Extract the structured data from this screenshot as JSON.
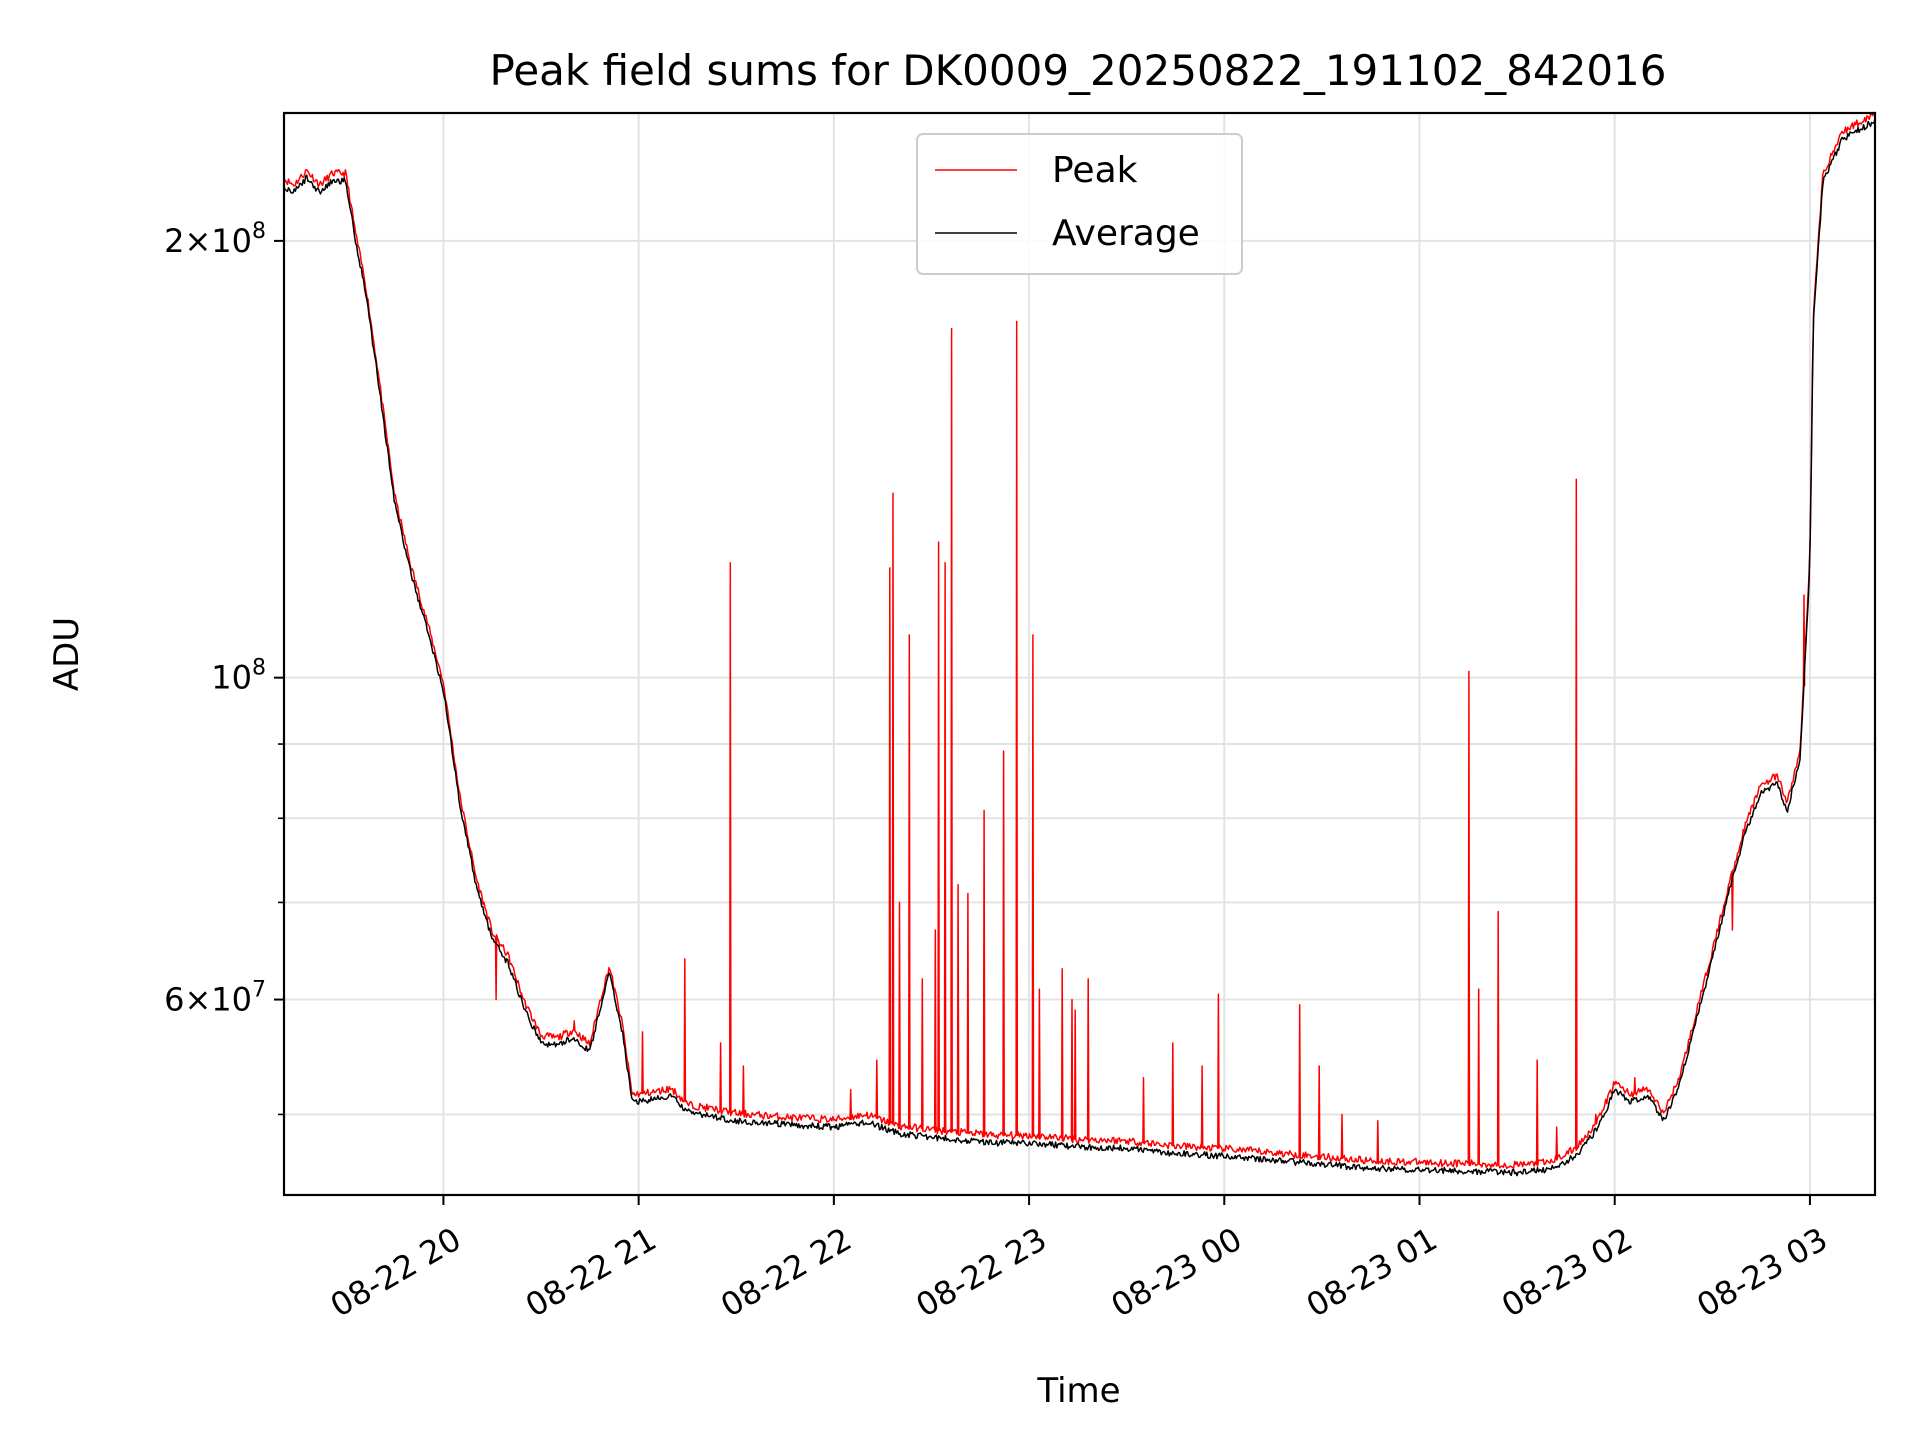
{
  "chart_data": {
    "type": "line",
    "title": "Peak field sums for DK0009_20250822_191102_842016",
    "xlabel": "Time",
    "ylabel": "ADU",
    "y_scale": "log",
    "ylim": [
      44000000,
      245000000
    ],
    "xlim": [
      "2025-08-22 19:11",
      "2025-08-23 03:20"
    ],
    "grid": true,
    "legend_position": "upper center",
    "x_ticks": [
      {
        "t": "2025-08-22 20:00",
        "label": "08-22 20"
      },
      {
        "t": "2025-08-22 21:00",
        "label": "08-22 21"
      },
      {
        "t": "2025-08-22 22:00",
        "label": "08-22 22"
      },
      {
        "t": "2025-08-22 23:00",
        "label": "08-22 23"
      },
      {
        "t": "2025-08-23 00:00",
        "label": "08-23 00"
      },
      {
        "t": "2025-08-23 01:00",
        "label": "08-23 01"
      },
      {
        "t": "2025-08-23 02:00",
        "label": "08-23 02"
      },
      {
        "t": "2025-08-23 03:00",
        "label": "08-23 03"
      }
    ],
    "y_major_ticks": [
      {
        "v": 60000000,
        "mant": "6",
        "exp": "7"
      },
      {
        "v": 100000000,
        "mant": "",
        "exp": "8"
      },
      {
        "v": 200000000,
        "mant": "2",
        "exp": "8"
      }
    ],
    "y_minor_ticks": [
      50000000,
      70000000,
      80000000,
      90000000
    ],
    "series": [
      {
        "name": "Average",
        "color": "#000000",
        "points": [
          [
            "2025-08-22 19:11",
            218000000
          ],
          [
            "2025-08-22 19:14",
            216000000
          ],
          [
            "2025-08-22 19:18",
            221000000
          ],
          [
            "2025-08-22 19:22",
            216000000
          ],
          [
            "2025-08-22 19:26",
            220000000
          ],
          [
            "2025-08-22 19:30",
            220000000
          ],
          [
            "2025-08-22 19:33",
            200000000
          ],
          [
            "2025-08-22 19:36",
            185000000
          ],
          [
            "2025-08-22 19:40",
            160000000
          ],
          [
            "2025-08-22 19:45",
            132000000
          ],
          [
            "2025-08-22 19:50",
            118000000
          ],
          [
            "2025-08-22 19:55",
            108000000
          ],
          [
            "2025-08-22 20:00",
            98000000
          ],
          [
            "2025-08-22 20:05",
            82000000
          ],
          [
            "2025-08-22 20:10",
            72000000
          ],
          [
            "2025-08-22 20:15",
            66000000
          ],
          [
            "2025-08-22 20:20",
            63500000
          ],
          [
            "2025-08-22 20:25",
            59000000
          ],
          [
            "2025-08-22 20:30",
            56000000
          ],
          [
            "2025-08-22 20:35",
            55800000
          ],
          [
            "2025-08-22 20:40",
            56500000
          ],
          [
            "2025-08-22 20:45",
            55200000
          ],
          [
            "2025-08-22 20:48",
            59000000
          ],
          [
            "2025-08-22 20:51",
            62500000
          ],
          [
            "2025-08-22 20:55",
            57000000
          ],
          [
            "2025-08-22 20:58",
            51000000
          ],
          [
            "2025-08-22 21:05",
            51200000
          ],
          [
            "2025-08-22 21:10",
            51500000
          ],
          [
            "2025-08-22 21:15",
            50200000
          ],
          [
            "2025-08-22 21:30",
            49500000
          ],
          [
            "2025-08-22 21:45",
            49200000
          ],
          [
            "2025-08-22 22:00",
            49000000
          ],
          [
            "2025-08-22 22:10",
            49400000
          ],
          [
            "2025-08-22 22:20",
            48500000
          ],
          [
            "2025-08-22 22:35",
            48100000
          ],
          [
            "2025-08-22 22:50",
            47800000
          ],
          [
            "2025-08-22 23:00",
            47800000
          ],
          [
            "2025-08-22 23:15",
            47500000
          ],
          [
            "2025-08-22 23:30",
            47400000
          ],
          [
            "2025-08-22 23:45",
            47000000
          ],
          [
            "2025-08-23 00:00",
            46800000
          ],
          [
            "2025-08-23 00:15",
            46500000
          ],
          [
            "2025-08-23 00:30",
            46200000
          ],
          [
            "2025-08-23 00:45",
            45900000
          ],
          [
            "2025-08-23 01:00",
            45800000
          ],
          [
            "2025-08-23 01:15",
            45700000
          ],
          [
            "2025-08-23 01:30",
            45600000
          ],
          [
            "2025-08-23 01:40",
            45800000
          ],
          [
            "2025-08-23 01:48",
            46800000
          ],
          [
            "2025-08-23 01:55",
            49000000
          ],
          [
            "2025-08-23 02:00",
            52000000
          ],
          [
            "2025-08-23 02:05",
            51000000
          ],
          [
            "2025-08-23 02:10",
            51500000
          ],
          [
            "2025-08-23 02:15",
            49500000
          ],
          [
            "2025-08-23 02:20",
            52500000
          ],
          [
            "2025-08-23 02:25",
            58000000
          ],
          [
            "2025-08-23 02:30",
            64000000
          ],
          [
            "2025-08-23 02:35",
            71000000
          ],
          [
            "2025-08-23 02:40",
            78000000
          ],
          [
            "2025-08-23 02:45",
            83500000
          ],
          [
            "2025-08-23 02:50",
            84500000
          ],
          [
            "2025-08-23 02:53",
            81000000
          ],
          [
            "2025-08-23 02:57",
            88000000
          ],
          [
            "2025-08-23 03:00",
            120000000
          ],
          [
            "2025-08-23 03:01",
            175000000
          ],
          [
            "2025-08-23 03:04",
            220000000
          ],
          [
            "2025-08-23 03:10",
            235000000
          ],
          [
            "2025-08-23 03:20",
            242000000
          ]
        ]
      },
      {
        "name": "Peak",
        "color": "#ff0000",
        "spikes": [
          [
            "2025-08-22 20:16",
            60000000
          ],
          [
            "2025-08-22 20:40",
            58000000
          ],
          [
            "2025-08-22 21:01",
            57000000
          ],
          [
            "2025-08-22 21:14",
            64000000
          ],
          [
            "2025-08-22 21:25",
            56000000
          ],
          [
            "2025-08-22 21:28",
            120000000
          ],
          [
            "2025-08-22 21:32",
            54000000
          ],
          [
            "2025-08-22 22:05",
            52000000
          ],
          [
            "2025-08-22 22:13",
            54500000
          ],
          [
            "2025-08-22 22:17",
            119000000
          ],
          [
            "2025-08-22 22:18",
            134000000
          ],
          [
            "2025-08-22 22:20",
            70000000
          ],
          [
            "2025-08-22 22:23",
            107000000
          ],
          [
            "2025-08-22 22:27",
            62000000
          ],
          [
            "2025-08-22 22:31",
            67000000
          ],
          [
            "2025-08-22 22:32",
            124000000
          ],
          [
            "2025-08-22 22:34",
            120000000
          ],
          [
            "2025-08-22 22:36",
            174000000
          ],
          [
            "2025-08-22 22:38",
            72000000
          ],
          [
            "2025-08-22 22:41",
            71000000
          ],
          [
            "2025-08-22 22:46",
            81000000
          ],
          [
            "2025-08-22 22:52",
            89000000
          ],
          [
            "2025-08-22 22:56",
            176000000
          ],
          [
            "2025-08-22 23:01",
            107000000
          ],
          [
            "2025-08-22 23:03",
            61000000
          ],
          [
            "2025-08-22 23:10",
            63000000
          ],
          [
            "2025-08-22 23:13",
            60000000
          ],
          [
            "2025-08-22 23:14",
            59000000
          ],
          [
            "2025-08-22 23:18",
            62000000
          ],
          [
            "2025-08-22 23:35",
            53000000
          ],
          [
            "2025-08-22 23:44",
            56000000
          ],
          [
            "2025-08-22 23:53",
            54000000
          ],
          [
            "2025-08-22 23:58",
            60500000
          ],
          [
            "2025-08-23 00:23",
            59500000
          ],
          [
            "2025-08-23 00:29",
            54000000
          ],
          [
            "2025-08-23 00:36",
            50000000
          ],
          [
            "2025-08-23 00:47",
            49500000
          ],
          [
            "2025-08-23 01:15",
            101000000
          ],
          [
            "2025-08-23 01:18",
            61000000
          ],
          [
            "2025-08-23 01:24",
            69000000
          ],
          [
            "2025-08-23 01:36",
            54500000
          ],
          [
            "2025-08-23 01:42",
            49000000
          ],
          [
            "2025-08-23 01:48",
            137000000
          ],
          [
            "2025-08-23 01:54",
            50000000
          ],
          [
            "2025-08-23 02:06",
            53000000
          ],
          [
            "2025-08-23 02:36",
            67000000
          ],
          [
            "2025-08-23 02:58",
            114000000
          ]
        ]
      }
    ]
  }
}
